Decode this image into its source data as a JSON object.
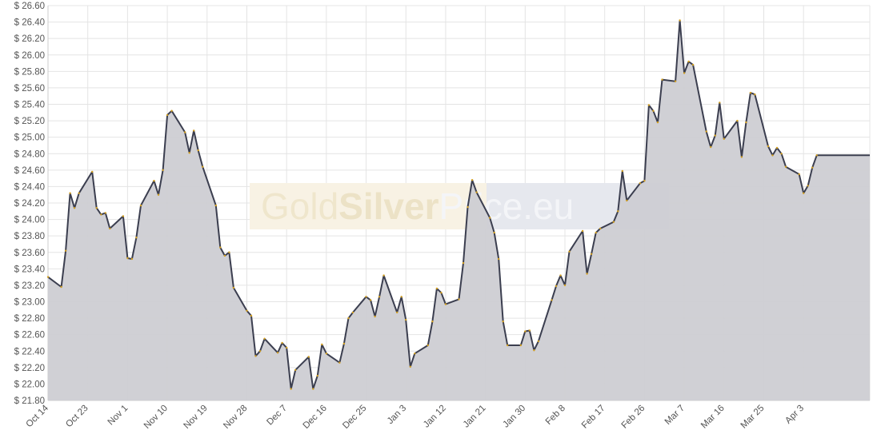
{
  "watermark": {
    "part1": "Gold",
    "part2": "Silver",
    "part3": "Price.eu"
  },
  "colors": {
    "line": "#3b3e4f",
    "area": "#cdcdd3",
    "marker": "#d4a020",
    "grid": "#e4e4e4"
  },
  "chart_data": {
    "type": "area",
    "title": "",
    "xlabel": "",
    "ylabel": "",
    "y_prefix": "$ ",
    "ylim": [
      21.8,
      26.6
    ],
    "ytick_step": 0.2,
    "grid": true,
    "legend": "none",
    "x_range_index": [
      0,
      186
    ],
    "x_ticks": [
      {
        "label": "Oct 14",
        "index": 0
      },
      {
        "label": "Oct 23",
        "index": 9
      },
      {
        "label": "Nov 1",
        "index": 18
      },
      {
        "label": "Nov 10",
        "index": 27
      },
      {
        "label": "Nov 19",
        "index": 36
      },
      {
        "label": "Nov 28",
        "index": 45
      },
      {
        "label": "Dec 7",
        "index": 54
      },
      {
        "label": "Dec 16",
        "index": 63
      },
      {
        "label": "Dec 25",
        "index": 72
      },
      {
        "label": "Jan 3",
        "index": 81
      },
      {
        "label": "Jan 12",
        "index": 90
      },
      {
        "label": "Jan 21",
        "index": 99
      },
      {
        "label": "Jan 30",
        "index": 108
      },
      {
        "label": "Feb 8",
        "index": 117
      },
      {
        "label": "Feb 17",
        "index": 126
      },
      {
        "label": "Feb 26",
        "index": 135
      },
      {
        "label": "Mar 7",
        "index": 144
      },
      {
        "label": "Mar 16",
        "index": 153
      },
      {
        "label": "Mar 25",
        "index": 162
      },
      {
        "label": "Apr 3",
        "index": 171
      }
    ],
    "series": [
      {
        "points": [
          [
            0,
            23.3
          ],
          [
            3,
            23.18
          ],
          [
            4,
            23.62
          ],
          [
            5,
            24.32
          ],
          [
            6,
            24.14
          ],
          [
            7,
            24.32
          ],
          [
            10,
            24.58
          ],
          [
            11,
            24.14
          ],
          [
            12,
            24.06
          ],
          [
            13,
            24.08
          ],
          [
            14,
            23.89
          ],
          [
            17,
            24.04
          ],
          [
            18,
            23.53
          ],
          [
            19,
            23.52
          ],
          [
            20,
            23.78
          ],
          [
            21,
            24.17
          ],
          [
            24,
            24.47
          ],
          [
            25,
            24.3
          ],
          [
            26,
            24.6
          ],
          [
            27,
            25.27
          ],
          [
            28,
            25.32
          ],
          [
            31,
            25.06
          ],
          [
            32,
            24.81
          ],
          [
            33,
            25.08
          ],
          [
            34,
            24.84
          ],
          [
            35,
            24.64
          ],
          [
            38,
            24.17
          ],
          [
            39,
            23.66
          ],
          [
            40,
            23.56
          ],
          [
            41,
            23.6
          ],
          [
            42,
            23.17
          ],
          [
            45,
            22.89
          ],
          [
            46,
            22.83
          ],
          [
            47,
            22.34
          ],
          [
            48,
            22.4
          ],
          [
            49,
            22.55
          ],
          [
            52,
            22.38
          ],
          [
            53,
            22.5
          ],
          [
            54,
            22.44
          ],
          [
            55,
            21.94
          ],
          [
            56,
            22.17
          ],
          [
            59,
            22.33
          ],
          [
            60,
            21.94
          ],
          [
            61,
            22.1
          ],
          [
            62,
            22.48
          ],
          [
            63,
            22.37
          ],
          [
            66,
            22.26
          ],
          [
            67,
            22.49
          ],
          [
            68,
            22.8
          ],
          [
            69,
            22.87
          ],
          [
            72,
            23.06
          ],
          [
            73,
            23.02
          ],
          [
            74,
            22.82
          ],
          [
            75,
            23.06
          ],
          [
            76,
            23.32
          ],
          [
            79,
            22.87
          ],
          [
            80,
            23.06
          ],
          [
            81,
            22.78
          ],
          [
            82,
            22.21
          ],
          [
            83,
            22.37
          ],
          [
            86,
            22.47
          ],
          [
            87,
            22.76
          ],
          [
            88,
            23.16
          ],
          [
            89,
            23.11
          ],
          [
            90,
            22.97
          ],
          [
            93,
            23.03
          ],
          [
            94,
            23.47
          ],
          [
            95,
            24.15
          ],
          [
            96,
            24.48
          ],
          [
            97,
            24.33
          ],
          [
            100,
            24.02
          ],
          [
            101,
            23.84
          ],
          [
            102,
            23.52
          ],
          [
            103,
            22.76
          ],
          [
            104,
            22.47
          ],
          [
            107,
            22.47
          ],
          [
            108,
            22.64
          ],
          [
            109,
            22.65
          ],
          [
            110,
            22.41
          ],
          [
            111,
            22.52
          ],
          [
            114,
            23.02
          ],
          [
            115,
            23.19
          ],
          [
            116,
            23.32
          ],
          [
            117,
            23.2
          ],
          [
            118,
            23.61
          ],
          [
            121,
            23.86
          ],
          [
            122,
            23.34
          ],
          [
            123,
            23.58
          ],
          [
            124,
            23.84
          ],
          [
            125,
            23.89
          ],
          [
            128,
            23.97
          ],
          [
            129,
            24.1
          ],
          [
            130,
            24.59
          ],
          [
            131,
            24.23
          ],
          [
            134,
            24.44
          ],
          [
            135,
            24.47
          ],
          [
            136,
            25.39
          ],
          [
            137,
            25.32
          ],
          [
            138,
            25.18
          ],
          [
            139,
            25.7
          ],
          [
            142,
            25.68
          ],
          [
            143,
            26.42
          ],
          [
            144,
            25.78
          ],
          [
            145,
            25.92
          ],
          [
            146,
            25.88
          ],
          [
            149,
            25.07
          ],
          [
            150,
            24.88
          ],
          [
            151,
            25.02
          ],
          [
            152,
            25.42
          ],
          [
            153,
            24.98
          ],
          [
            156,
            25.2
          ],
          [
            157,
            24.76
          ],
          [
            158,
            25.18
          ],
          [
            159,
            25.54
          ],
          [
            160,
            25.52
          ],
          [
            163,
            24.89
          ],
          [
            164,
            24.78
          ],
          [
            165,
            24.87
          ],
          [
            166,
            24.8
          ],
          [
            167,
            24.64
          ],
          [
            170,
            24.55
          ],
          [
            171,
            24.32
          ],
          [
            172,
            24.41
          ],
          [
            173,
            24.63
          ],
          [
            174,
            24.78
          ],
          [
            186,
            24.78
          ]
        ]
      }
    ]
  }
}
